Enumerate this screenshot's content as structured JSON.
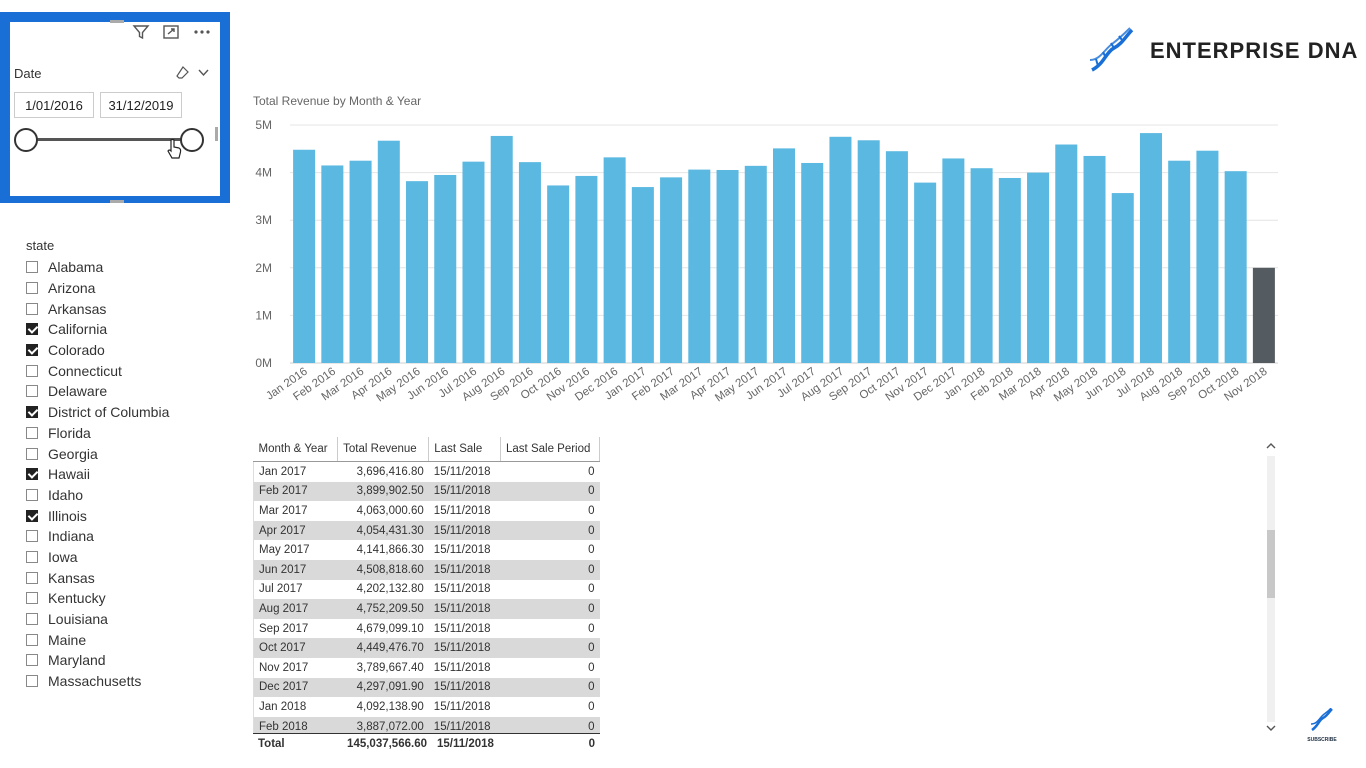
{
  "date_slicer": {
    "title": "Date",
    "start": "1/01/2016",
    "end": "31/12/2019",
    "toolbar_icons": [
      "filter-icon",
      "focus-mode-icon",
      "more-options-icon"
    ]
  },
  "state_slicer": {
    "title": "state",
    "items": [
      {
        "label": "Alabama",
        "checked": false
      },
      {
        "label": "Arizona",
        "checked": false
      },
      {
        "label": "Arkansas",
        "checked": false
      },
      {
        "label": "California",
        "checked": true
      },
      {
        "label": "Colorado",
        "checked": true
      },
      {
        "label": "Connecticut",
        "checked": false
      },
      {
        "label": "Delaware",
        "checked": false
      },
      {
        "label": "District of Columbia",
        "checked": true
      },
      {
        "label": "Florida",
        "checked": false
      },
      {
        "label": "Georgia",
        "checked": false
      },
      {
        "label": "Hawaii",
        "checked": true
      },
      {
        "label": "Idaho",
        "checked": false
      },
      {
        "label": "Illinois",
        "checked": true
      },
      {
        "label": "Indiana",
        "checked": false
      },
      {
        "label": "Iowa",
        "checked": false
      },
      {
        "label": "Kansas",
        "checked": false
      },
      {
        "label": "Kentucky",
        "checked": false
      },
      {
        "label": "Louisiana",
        "checked": false
      },
      {
        "label": "Maine",
        "checked": false
      },
      {
        "label": "Maryland",
        "checked": false
      },
      {
        "label": "Massachusetts",
        "checked": false
      }
    ]
  },
  "logo": {
    "text": "ENTERPRISE DNA",
    "color": "#1a6fd6"
  },
  "chart_data": {
    "type": "bar",
    "title": "Total Revenue by Month & Year",
    "categories": [
      "Jan 2016",
      "Feb 2016",
      "Mar 2016",
      "Apr 2016",
      "May 2016",
      "Jun 2016",
      "Jul 2016",
      "Aug 2016",
      "Sep 2016",
      "Oct 2016",
      "Nov 2016",
      "Dec 2016",
      "Jan 2017",
      "Feb 2017",
      "Mar 2017",
      "Apr 2017",
      "May 2017",
      "Jun 2017",
      "Jul 2017",
      "Aug 2017",
      "Sep 2017",
      "Oct 2017",
      "Nov 2017",
      "Dec 2017",
      "Jan 2018",
      "Feb 2018",
      "Mar 2018",
      "Apr 2018",
      "May 2018",
      "Jun 2018",
      "Jul 2018",
      "Aug 2018",
      "Sep 2018",
      "Oct 2018",
      "Nov 2018"
    ],
    "values": [
      4480000,
      4150000,
      4250000,
      4670000,
      3820000,
      3950000,
      4230000,
      4770000,
      4220000,
      3730000,
      3930000,
      4320000,
      3696416.8,
      3899902.5,
      4063000.6,
      4054431.3,
      4141866.3,
      4508818.6,
      4202132.8,
      4752209.5,
      4679099.1,
      4449476.7,
      3789667.4,
      4297091.9,
      4092138.9,
      3887072.0,
      4000000,
      4590000,
      4350000,
      3570000,
      4830000,
      4250000,
      4460000,
      4030000,
      2000000
    ],
    "highlight_index": 34,
    "ylim": [
      0,
      5000000
    ],
    "y_ticks": [
      "0M",
      "1M",
      "2M",
      "3M",
      "4M",
      "5M"
    ],
    "grid": true,
    "bar_color": "#5bb8e0",
    "highlight_color": "#555c61"
  },
  "table": {
    "columns": [
      "Month & Year",
      "Total Revenue",
      "Last Sale",
      "Last Sale Period"
    ],
    "rows": [
      [
        "Jan 2017",
        "3,696,416.80",
        "15/11/2018",
        "0"
      ],
      [
        "Feb 2017",
        "3,899,902.50",
        "15/11/2018",
        "0"
      ],
      [
        "Mar 2017",
        "4,063,000.60",
        "15/11/2018",
        "0"
      ],
      [
        "Apr 2017",
        "4,054,431.30",
        "15/11/2018",
        "0"
      ],
      [
        "May 2017",
        "4,141,866.30",
        "15/11/2018",
        "0"
      ],
      [
        "Jun 2017",
        "4,508,818.60",
        "15/11/2018",
        "0"
      ],
      [
        "Jul 2017",
        "4,202,132.80",
        "15/11/2018",
        "0"
      ],
      [
        "Aug 2017",
        "4,752,209.50",
        "15/11/2018",
        "0"
      ],
      [
        "Sep 2017",
        "4,679,099.10",
        "15/11/2018",
        "0"
      ],
      [
        "Oct 2017",
        "4,449,476.70",
        "15/11/2018",
        "0"
      ],
      [
        "Nov 2017",
        "3,789,667.40",
        "15/11/2018",
        "0"
      ],
      [
        "Dec 2017",
        "4,297,091.90",
        "15/11/2018",
        "0"
      ],
      [
        "Jan 2018",
        "4,092,138.90",
        "15/11/2018",
        "0"
      ],
      [
        "Feb 2018",
        "3,887,072.00",
        "15/11/2018",
        "0"
      ]
    ],
    "total": [
      "Total",
      "145,037,566.60",
      "15/11/2018",
      "0"
    ]
  },
  "subscribe": {
    "label": "SUBSCRIBE"
  }
}
